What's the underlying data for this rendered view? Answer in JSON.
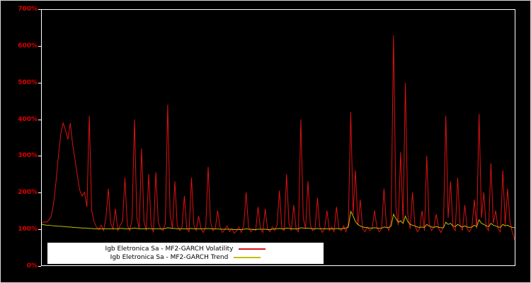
{
  "figure": {
    "colors": {
      "background": "#000000",
      "frame": "#ffffff",
      "tick_labels": "#dd0000",
      "legend_background": "#ffffff",
      "legend_text": "#000000"
    }
  },
  "chart_data": {
    "type": "line",
    "title": "",
    "xlabel": "",
    "ylabel": "",
    "ylim": [
      0,
      700
    ],
    "grid": false,
    "legend_position": "bottom-left",
    "y_ticks": [
      "0%",
      "100%",
      "200%",
      "300%",
      "400%",
      "500%",
      "600%",
      "700%"
    ],
    "x_tick_labels": [],
    "series": [
      {
        "name": "Igb Eletronica Sa - MF2-GARCH Volatility",
        "color": "#dd1111",
        "unit": "%",
        "values": [
          115,
          120,
          118,
          124,
          135,
          170,
          230,
          300,
          360,
          390,
          370,
          345,
          390,
          330,
          290,
          245,
          205,
          190,
          200,
          160,
          410,
          150,
          120,
          105,
          98,
          110,
          95,
          130,
          210,
          115,
          100,
          155,
          95,
          110,
          120,
          240,
          110,
          95,
          125,
          400,
          130,
          100,
          320,
          120,
          95,
          250,
          110,
          90,
          255,
          120,
          100,
          95,
          115,
          440,
          140,
          100,
          230,
          110,
          95,
          105,
          190,
          100,
          92,
          240,
          110,
          95,
          135,
          100,
          90,
          105,
          270,
          120,
          95,
          100,
          150,
          105,
          90,
          98,
          108,
          92,
          100,
          88,
          95,
          105,
          90,
          110,
          200,
          105,
          92,
          100,
          95,
          160,
          100,
          90,
          155,
          100,
          92,
          105,
          95,
          110,
          205,
          100,
          95,
          250,
          115,
          95,
          165,
          100,
          92,
          400,
          130,
          100,
          230,
          110,
          95,
          100,
          185,
          105,
          90,
          100,
          150,
          95,
          105,
          92,
          160,
          100,
          95,
          108,
          92,
          115,
          420,
          140,
          260,
          110,
          180,
          100,
          92,
          105,
          95,
          100,
          150,
          105,
          92,
          100,
          210,
          110,
          95,
          120,
          630,
          160,
          110,
          310,
          120,
          500,
          140,
          100,
          200,
          110,
          92,
          100,
          150,
          95,
          300,
          115,
          95,
          105,
          140,
          100,
          90,
          105,
          410,
          130,
          230,
          105,
          95,
          240,
          110,
          95,
          165,
          100,
          92,
          105,
          180,
          100,
          415,
          130,
          200,
          105,
          95,
          280,
          115,
          150,
          100,
          92,
          260,
          110,
          210,
          120,
          90,
          70
        ]
      },
      {
        "name": "Igb Eletronica Sa - MF2-GARCH Trend",
        "color": "#bfbf00",
        "unit": "%",
        "values": [
          112,
          111,
          110,
          110,
          109,
          108,
          108,
          107,
          107,
          106,
          106,
          105,
          105,
          104,
          104,
          103,
          103,
          102,
          102,
          102,
          101,
          101,
          100,
          100,
          100,
          100,
          100,
          100,
          100,
          100,
          100,
          100,
          100,
          101,
          101,
          100,
          100,
          100,
          101,
          102,
          101,
          100,
          100,
          100,
          100,
          101,
          100,
          100,
          100,
          100,
          100,
          100,
          101,
          103,
          102,
          101,
          101,
          100,
          100,
          100,
          100,
          100,
          100,
          101,
          100,
          100,
          100,
          100,
          100,
          100,
          101,
          100,
          100,
          100,
          100,
          99,
          99,
          99,
          99,
          99,
          99,
          98,
          98,
          98,
          98,
          99,
          100,
          99,
          99,
          98,
          98,
          99,
          99,
          99,
          99,
          98,
          98,
          99,
          100,
          100,
          101,
          100,
          100,
          102,
          101,
          100,
          100,
          100,
          100,
          103,
          102,
          101,
          102,
          101,
          100,
          100,
          101,
          100,
          100,
          100,
          100,
          100,
          100,
          100,
          101,
          100,
          100,
          101,
          102,
          105,
          148,
          135,
          120,
          112,
          108,
          105,
          104,
          103,
          102,
          102,
          103,
          102,
          101,
          102,
          105,
          104,
          103,
          108,
          140,
          128,
          118,
          122,
          115,
          135,
          120,
          112,
          110,
          108,
          105,
          104,
          105,
          104,
          112,
          108,
          105,
          104,
          106,
          104,
          103,
          103,
          118,
          112,
          115,
          108,
          106,
          112,
          108,
          105,
          108,
          105,
          104,
          105,
          110,
          106,
          125,
          115,
          112,
          108,
          106,
          115,
          110,
          108,
          105,
          104,
          112,
          108,
          110,
          106,
          104,
          103
        ]
      }
    ]
  },
  "legend": {
    "items": [
      {
        "label": "Igb Eletronica Sa - MF2-GARCH Volatility",
        "color": "#dd1111"
      },
      {
        "label": "Igb Eletronica Sa - MF2-GARCH Trend",
        "color": "#bfbf00"
      }
    ]
  }
}
